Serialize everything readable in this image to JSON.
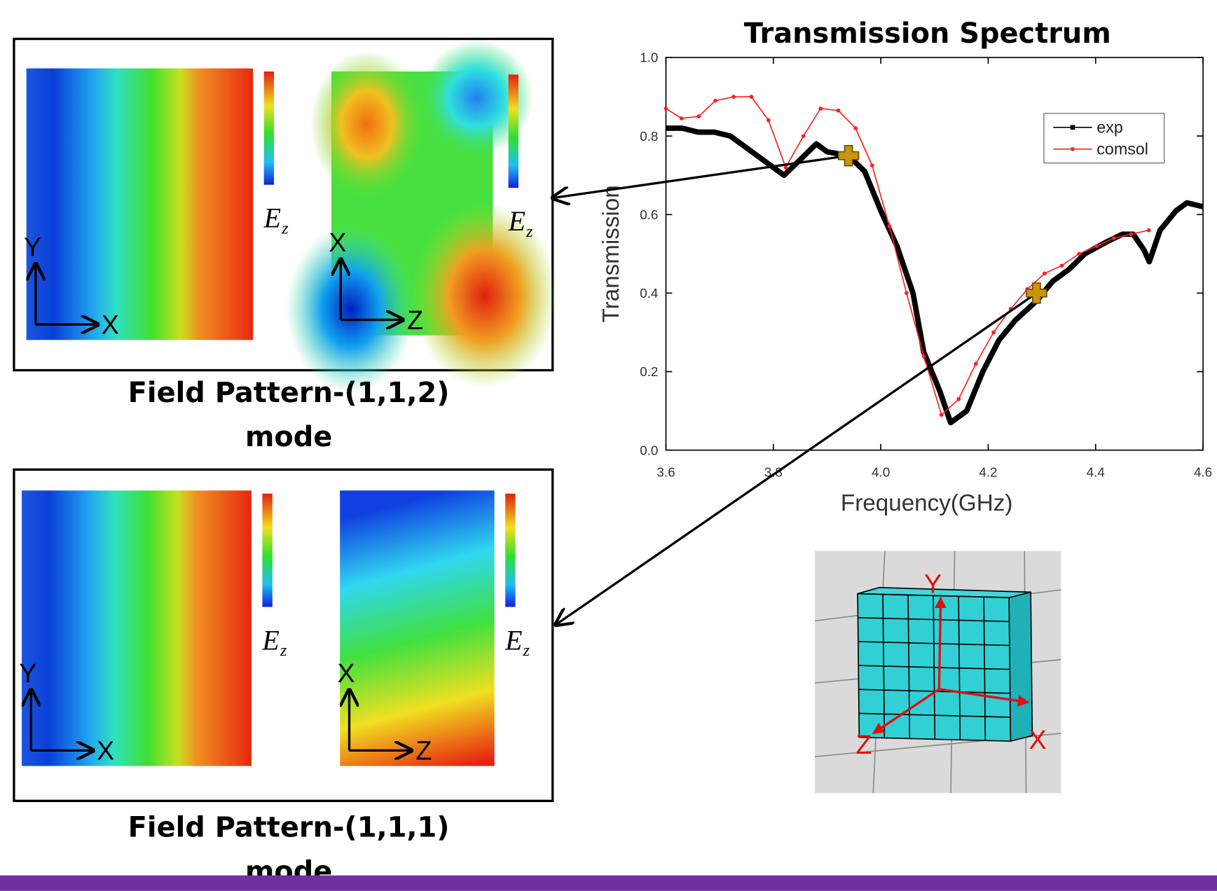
{
  "chart_data": {
    "type": "line",
    "title": "Transmission Spectrum",
    "x_label": "Frequency(GHz)",
    "y_label": "Transmission",
    "xlim": [
      3.6,
      4.6
    ],
    "ylim": [
      0,
      1
    ],
    "xticks": [
      3.6,
      3.8,
      {
        "value": 4,
        "label": "4.0"
      },
      4.2,
      4.4,
      4.6
    ],
    "yticks": [
      {
        "value": 0,
        "label": "0.0"
      },
      0.2,
      0.4,
      0.6,
      0.8,
      {
        "value": 1,
        "label": "1.0"
      }
    ],
    "legend": "upper right",
    "series": [
      {
        "name": "exp",
        "color": "#000000",
        "x": [
          3.6,
          3.63,
          3.66,
          3.69,
          3.72,
          3.75,
          3.78,
          3.8,
          3.82,
          3.85,
          3.88,
          3.9,
          3.94,
          3.97,
          4.0,
          4.03,
          4.06,
          4.08,
          4.11,
          4.13,
          4.16,
          4.19,
          4.22,
          4.25,
          4.29,
          4.32,
          4.35,
          4.38,
          4.42,
          4.45,
          4.47,
          4.49,
          4.5,
          4.52,
          4.55,
          4.57,
          4.6
        ],
        "values": [
          0.82,
          0.82,
          0.81,
          0.81,
          0.8,
          0.77,
          0.74,
          0.72,
          0.7,
          0.74,
          0.78,
          0.76,
          0.75,
          0.71,
          0.61,
          0.52,
          0.4,
          0.25,
          0.15,
          0.07,
          0.1,
          0.2,
          0.28,
          0.33,
          0.38,
          0.43,
          0.46,
          0.5,
          0.53,
          0.55,
          0.55,
          0.51,
          0.48,
          0.56,
          0.61,
          0.63,
          0.62
        ]
      },
      {
        "name": "comsol",
        "color": "#ff2020",
        "x": [
          3.6,
          3.629,
          3.661,
          3.692,
          3.726,
          3.759,
          3.791,
          3.823,
          3.856,
          3.888,
          3.921,
          3.953,
          3.984,
          4.016,
          4.048,
          4.08,
          4.113,
          4.145,
          4.177,
          4.21,
          4.242,
          4.273,
          4.305,
          4.337,
          4.369,
          4.402,
          4.434,
          4.466,
          4.499
        ],
        "values": [
          0.87,
          0.845,
          0.85,
          0.89,
          0.9,
          0.9,
          0.84,
          0.72,
          0.8,
          0.87,
          0.865,
          0.82,
          0.725,
          0.57,
          0.4,
          0.24,
          0.09,
          0.13,
          0.22,
          0.3,
          0.36,
          0.41,
          0.45,
          0.47,
          0.5,
          0.52,
          0.54,
          0.55,
          0.56
        ]
      }
    ],
    "markers": {
      "color": "#c8960a",
      "x": [
        3.94,
        4.29
      ],
      "values": [
        0.75,
        0.4
      ]
    }
  },
  "panels": [
    {
      "caption_lines": [
        "Field Pattern-(1,1,2)",
        "mode"
      ],
      "maps": [
        {
          "axes": [
            "Y",
            "X"
          ],
          "field": "E",
          "field_sub": "z"
        },
        {
          "axes": [
            "X",
            "Z"
          ],
          "field": "E",
          "field_sub": "z"
        }
      ]
    },
    {
      "caption_lines": [
        "Field Pattern-(1,1,1)",
        "mode"
      ],
      "maps": [
        {
          "axes": [
            "Y",
            "X"
          ],
          "field": "E",
          "field_sub": "z"
        },
        {
          "axes": [
            "X",
            "Z"
          ],
          "field": "E",
          "field_sub": "z"
        }
      ]
    }
  ],
  "model": {
    "axes": [
      "Y",
      "Z",
      "X"
    ]
  }
}
